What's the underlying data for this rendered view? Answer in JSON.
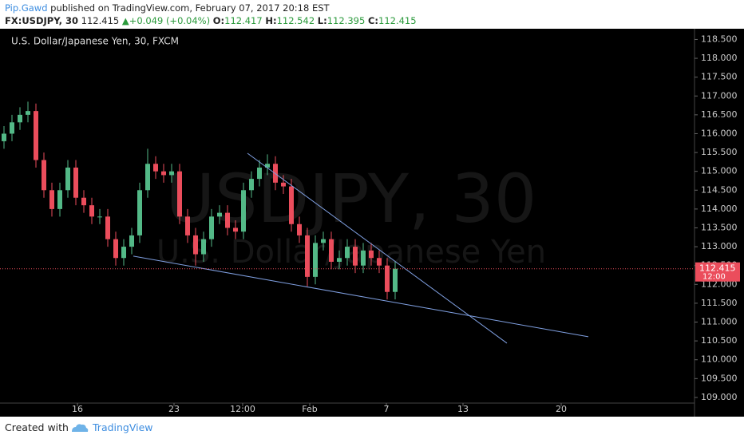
{
  "header": {
    "author": "Pip.Gawd",
    "published": "published on TradingView.com, February 07, 2017 20:18 EST",
    "symbol": "FX:USDJPY, 30",
    "price": "112.415",
    "change": "+0.049 (+0.04%)",
    "open_label": "O:",
    "open": "112.417",
    "high_label": "H:",
    "high": "112.542",
    "low_label": "L:",
    "low": "112.395",
    "close_label": "C:",
    "close": "112.415"
  },
  "chart_data": {
    "type": "candlestick",
    "title": "U.S. Dollar/Japanese Yen, 30, FXCM",
    "watermark": "USDJPY, 30",
    "watermark_subtitle": "U.S. Dollar/Japanese Yen",
    "up_color": "#53b987",
    "down_color": "#eb4d5c",
    "line_color": "#7f9fe0",
    "grid": false,
    "x": [
      0,
      1,
      2,
      3,
      4,
      5,
      6,
      7,
      8,
      9,
      10,
      11,
      12,
      13,
      14,
      15,
      16,
      17,
      18,
      19,
      20,
      21,
      22,
      23,
      24,
      25,
      26,
      27,
      28,
      29,
      30,
      31,
      32,
      33,
      34,
      35,
      36,
      37,
      38,
      39,
      40,
      41,
      42,
      43,
      44,
      45,
      46,
      47,
      48,
      49
    ],
    "open": [
      115.8,
      116.0,
      116.3,
      116.5,
      116.6,
      115.3,
      114.5,
      114.0,
      114.5,
      115.1,
      114.3,
      114.1,
      113.8,
      113.8,
      113.2,
      112.7,
      113.0,
      113.3,
      114.5,
      115.2,
      115.0,
      114.9,
      115.0,
      113.8,
      113.3,
      112.8,
      113.2,
      113.8,
      113.9,
      113.5,
      113.4,
      114.5,
      114.8,
      115.1,
      115.2,
      114.7,
      114.6,
      113.6,
      113.3,
      112.2,
      113.1,
      113.2,
      112.6,
      112.7,
      113.0,
      112.5,
      112.9,
      112.7,
      112.5,
      111.8
    ],
    "high": [
      116.2,
      116.5,
      116.7,
      116.85,
      116.8,
      115.5,
      114.7,
      114.7,
      115.3,
      115.3,
      114.5,
      114.3,
      114.0,
      114.0,
      113.4,
      113.2,
      113.5,
      114.7,
      115.6,
      115.4,
      115.2,
      115.2,
      115.2,
      114.0,
      113.5,
      113.4,
      114.0,
      114.1,
      114.1,
      113.7,
      114.7,
      115.0,
      115.3,
      115.45,
      115.4,
      114.9,
      114.8,
      113.8,
      113.5,
      113.3,
      113.4,
      113.4,
      112.9,
      113.2,
      113.2,
      113.1,
      113.1,
      112.9,
      112.7,
      112.6
    ],
    "low": [
      115.6,
      115.8,
      116.1,
      116.3,
      115.1,
      114.3,
      113.8,
      113.8,
      114.3,
      114.1,
      113.9,
      113.6,
      113.6,
      113.0,
      112.5,
      112.5,
      112.8,
      113.1,
      114.3,
      114.8,
      114.7,
      114.7,
      113.6,
      113.1,
      112.5,
      112.6,
      113.0,
      113.6,
      113.3,
      113.2,
      113.2,
      114.3,
      114.6,
      114.9,
      114.5,
      114.4,
      113.4,
      113.1,
      111.95,
      112.0,
      112.9,
      112.4,
      112.4,
      112.5,
      112.3,
      112.3,
      112.5,
      112.3,
      111.6,
      111.6
    ],
    "close": [
      116.0,
      116.3,
      116.5,
      116.6,
      115.3,
      114.5,
      114.0,
      114.5,
      115.1,
      114.3,
      114.1,
      113.8,
      113.8,
      113.2,
      112.7,
      113.0,
      113.3,
      114.5,
      115.2,
      115.0,
      114.9,
      115.0,
      113.8,
      113.3,
      112.8,
      113.2,
      113.8,
      113.9,
      113.5,
      113.4,
      114.5,
      114.8,
      115.1,
      115.2,
      114.7,
      114.6,
      113.6,
      113.3,
      112.2,
      113.1,
      113.2,
      112.6,
      112.7,
      113.0,
      112.5,
      112.9,
      112.7,
      112.5,
      111.8,
      112.415
    ],
    "trendlines": [
      {
        "x": [
          30.5,
          63
        ],
        "y": [
          115.48,
          110.44
        ]
      },
      {
        "x": [
          16.2,
          73.2
        ],
        "y": [
          112.75,
          110.61
        ]
      }
    ],
    "last_price": 112.415,
    "countdown": "12:00",
    "xlim": [
      -0.5,
      86.5
    ],
    "xticks": [
      {
        "value": 9.2,
        "label": "16"
      },
      {
        "value": 21.3,
        "label": "23"
      },
      {
        "value": 29.9,
        "label": "12:00"
      },
      {
        "value": 38.3,
        "label": "Feb"
      },
      {
        "value": 47.9,
        "label": "7"
      },
      {
        "value": 57.5,
        "label": "13"
      },
      {
        "value": 69.8,
        "label": "20"
      }
    ],
    "ylim": [
      108.85,
      118.7
    ],
    "yticks": [
      {
        "value": 109,
        "label": "109.000"
      },
      {
        "value": 109.5,
        "label": "109.500"
      },
      {
        "value": 110,
        "label": "110.000"
      },
      {
        "value": 110.5,
        "label": "110.500"
      },
      {
        "value": 111,
        "label": "111.000"
      },
      {
        "value": 111.5,
        "label": "111.500"
      },
      {
        "value": 112,
        "label": "112.000"
      },
      {
        "value": 112.5,
        "label": "112.500"
      },
      {
        "value": 113,
        "label": "113.000"
      },
      {
        "value": 113.5,
        "label": "113.500"
      },
      {
        "value": 114,
        "label": "114.000"
      },
      {
        "value": 114.5,
        "label": "114.500"
      },
      {
        "value": 115,
        "label": "115.000"
      },
      {
        "value": 115.5,
        "label": "115.500"
      },
      {
        "value": 116,
        "label": "116.000"
      },
      {
        "value": 116.5,
        "label": "116.500"
      },
      {
        "value": 117,
        "label": "117.000"
      },
      {
        "value": 117.5,
        "label": "117.500"
      },
      {
        "value": 118,
        "label": "118.000"
      },
      {
        "value": 118.5,
        "label": "118.500"
      }
    ]
  },
  "footer": {
    "created": "Created with",
    "brand": "TradingView"
  }
}
